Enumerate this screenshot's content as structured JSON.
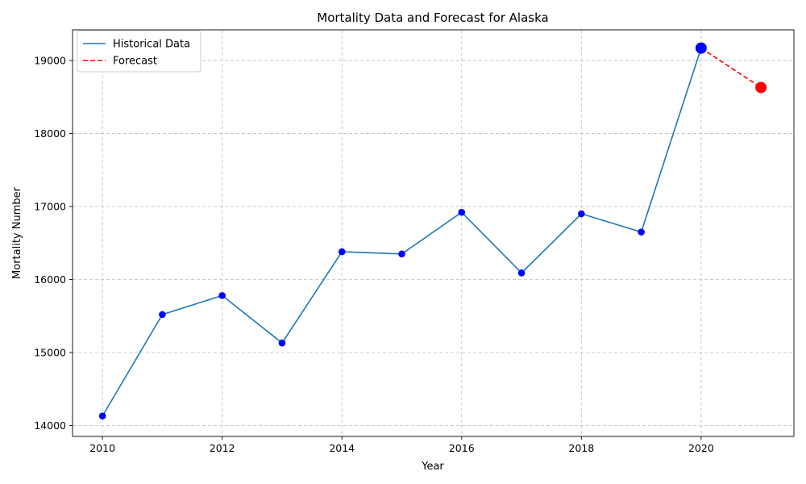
{
  "chart_data": {
    "type": "line",
    "title": "Mortality Data and Forecast for Alaska",
    "xlabel": "Year",
    "ylabel": "Mortality Number",
    "xlim": [
      2009.5,
      2021.55
    ],
    "ylim": [
      13850,
      19420
    ],
    "xticks": [
      2010,
      2012,
      2014,
      2016,
      2018,
      2020
    ],
    "yticks": [
      14000,
      15000,
      16000,
      17000,
      18000,
      19000
    ],
    "grid": true,
    "legend_placement": "top-left",
    "series": [
      {
        "name": "Historical Data",
        "style": "solid",
        "color": "#1f77b4",
        "marker_color": "#0000ff",
        "x": [
          2010,
          2011,
          2012,
          2013,
          2014,
          2015,
          2016,
          2017,
          2018,
          2019,
          2020
        ],
        "y": [
          14130,
          15520,
          15780,
          15130,
          16380,
          16350,
          16920,
          16090,
          16900,
          16650,
          19170
        ]
      },
      {
        "name": "Forecast",
        "style": "dashed",
        "color": "#ff0000",
        "x": [
          2020,
          2021
        ],
        "y": [
          19170,
          18630
        ]
      }
    ],
    "highlighted_points": [
      {
        "x": 2020,
        "y": 19170,
        "color": "#0000ff"
      },
      {
        "x": 2021,
        "y": 18630,
        "color": "#ff0000"
      }
    ]
  }
}
